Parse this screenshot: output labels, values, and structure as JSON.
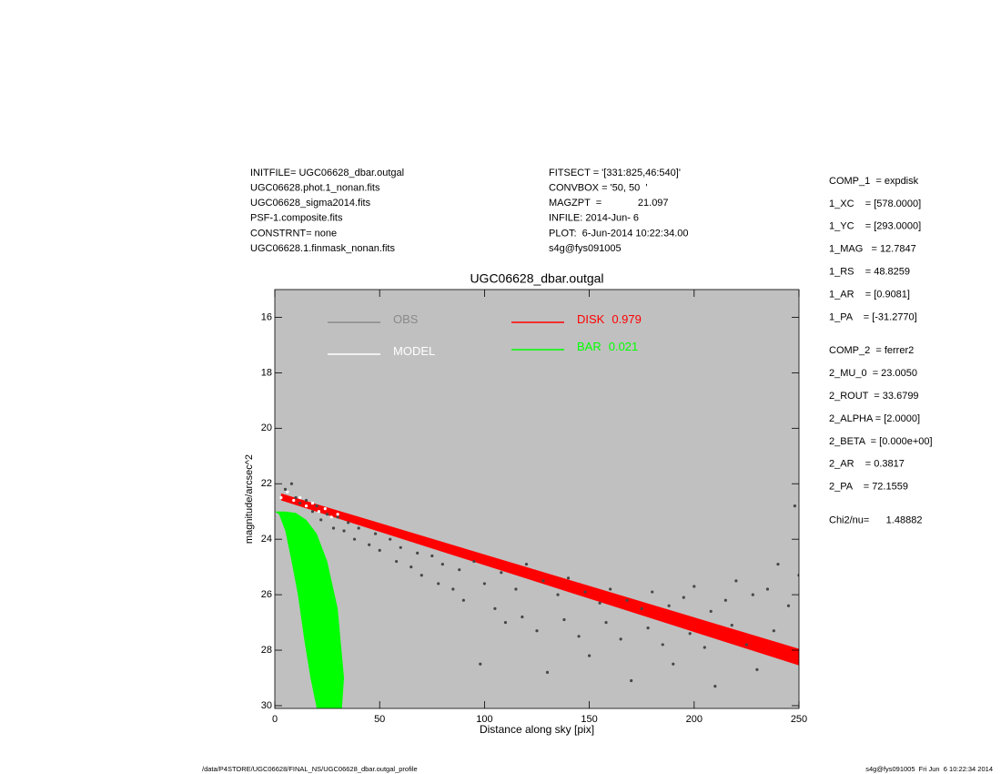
{
  "header": {
    "left": [
      "INITFILE= UGC06628_dbar.outgal",
      "UGC06628.phot.1_nonan.fits",
      "UGC06628_sigma2014.fits",
      "PSF-1.composite.fits",
      "CONSTRNT= none",
      "UGC06628.1.finmask_nonan.fits"
    ],
    "middle": [
      "FITSECT = '[331:825,46:540]'",
      "CONVBOX = '50, 50  '",
      "MAGZPT  =             21.097",
      "INFILE: 2014-Jun- 6",
      "PLOT:  6-Jun-2014 10:22:34.00",
      "s4g@fys091005"
    ]
  },
  "params": [
    [
      "COMP_1  = expdisk",
      "1_XC    = [578.0000]",
      "1_YC    = [293.0000]",
      "1_MAG   = 12.7847",
      "1_RS    = 48.8259",
      "1_AR    = [0.9081]",
      "1_PA    = [-31.2770]"
    ],
    [
      "COMP_2  = ferrer2",
      "2_MU_0  = 23.0050",
      "2_ROUT  = 33.6799",
      "2_ALPHA = [2.0000]",
      "2_BETA  = [0.000e+00]",
      "2_AR    = 0.3817",
      "2_PA    = 72.1559"
    ],
    [
      "Chi2/nu=      1.48882"
    ]
  ],
  "footer": {
    "left": "/data/P4STORE/UGC06628/FINAL_NS/UGC06628_dbar.outgal_profile",
    "right": "s4g@fys091005  Fri Jun  6 10:22:34 2014"
  },
  "chart_data": {
    "type": "scatter",
    "title": "UGC06628_dbar.outgal",
    "xlabel": "Distance along sky [pix]",
    "ylabel": "magnitude/arcsec^2",
    "xlim": [
      0,
      250
    ],
    "ylim": [
      15,
      30.1
    ],
    "y_inverted": true,
    "xticks": [
      0,
      50,
      100,
      150,
      200,
      250
    ],
    "yticks": [
      16,
      18,
      20,
      22,
      24,
      26,
      28,
      30
    ],
    "background": "#c0c0c0",
    "series": [
      {
        "name": "OBS",
        "color": "#474747",
        "marker": "dot",
        "x": [
          5,
          8,
          10,
          12,
          15,
          18,
          20,
          22,
          25,
          28,
          30,
          33,
          35,
          38,
          40,
          45,
          48,
          50,
          55,
          58,
          60,
          65,
          68,
          70,
          75,
          78,
          80,
          85,
          88,
          90,
          95,
          98,
          100,
          105,
          108,
          110,
          115,
          118,
          120,
          125,
          128,
          130,
          135,
          138,
          140,
          145,
          148,
          150,
          155,
          158,
          160,
          165,
          168,
          170,
          175,
          178,
          180,
          185,
          188,
          190,
          195,
          198,
          200,
          205,
          208,
          210,
          215,
          218,
          220,
          225,
          228,
          230,
          235,
          238,
          240,
          245,
          248,
          250
        ],
        "values": [
          22.2,
          22.0,
          22.5,
          22.7,
          22.6,
          23.0,
          22.8,
          23.3,
          23.1,
          23.6,
          23.2,
          23.7,
          23.4,
          24.0,
          23.6,
          24.2,
          23.8,
          24.4,
          24.0,
          24.8,
          24.3,
          25.0,
          24.5,
          25.3,
          24.6,
          25.6,
          24.9,
          25.8,
          25.1,
          26.2,
          24.8,
          28.5,
          25.6,
          26.5,
          25.2,
          27.0,
          25.8,
          26.8,
          24.9,
          27.3,
          25.5,
          28.8,
          26.0,
          26.9,
          25.4,
          27.5,
          25.9,
          28.2,
          26.3,
          27.0,
          25.8,
          27.6,
          26.2,
          29.1,
          26.5,
          27.2,
          25.9,
          27.8,
          26.4,
          28.5,
          26.1,
          27.4,
          25.7,
          27.9,
          26.6,
          29.3,
          26.2,
          27.1,
          25.5,
          27.8,
          26.0,
          28.7,
          25.8,
          27.3,
          24.9,
          26.4,
          22.8,
          25.3
        ]
      },
      {
        "name": "MODEL",
        "color": "#ffffff",
        "marker": "dot",
        "x": [
          3,
          6,
          9,
          12,
          15,
          18,
          21,
          24,
          27,
          30
        ],
        "values": [
          22.5,
          22.3,
          22.6,
          22.5,
          22.8,
          22.7,
          23.0,
          22.9,
          23.2,
          23.1
        ]
      },
      {
        "name": "DISK",
        "fraction": 0.979,
        "color": "#ff0000",
        "marker": "area",
        "x": [
          3,
          250,
          250,
          3
        ],
        "values": [
          22.35,
          27.95,
          28.55,
          22.6
        ]
      },
      {
        "name": "BAR",
        "fraction": 0.021,
        "color": "#00ff00",
        "marker": "area",
        "x": [
          0,
          5,
          10,
          15,
          20,
          25,
          30,
          33,
          32,
          27,
          22,
          20,
          17,
          14,
          11,
          8,
          5,
          2,
          0
        ],
        "values": [
          23.0,
          23.0,
          23.05,
          23.3,
          23.8,
          24.8,
          26.5,
          29.0,
          30.1,
          30.1,
          30.1,
          30.1,
          29.0,
          27.6,
          26.0,
          24.8,
          23.7,
          23.1,
          23.0
        ]
      }
    ]
  }
}
